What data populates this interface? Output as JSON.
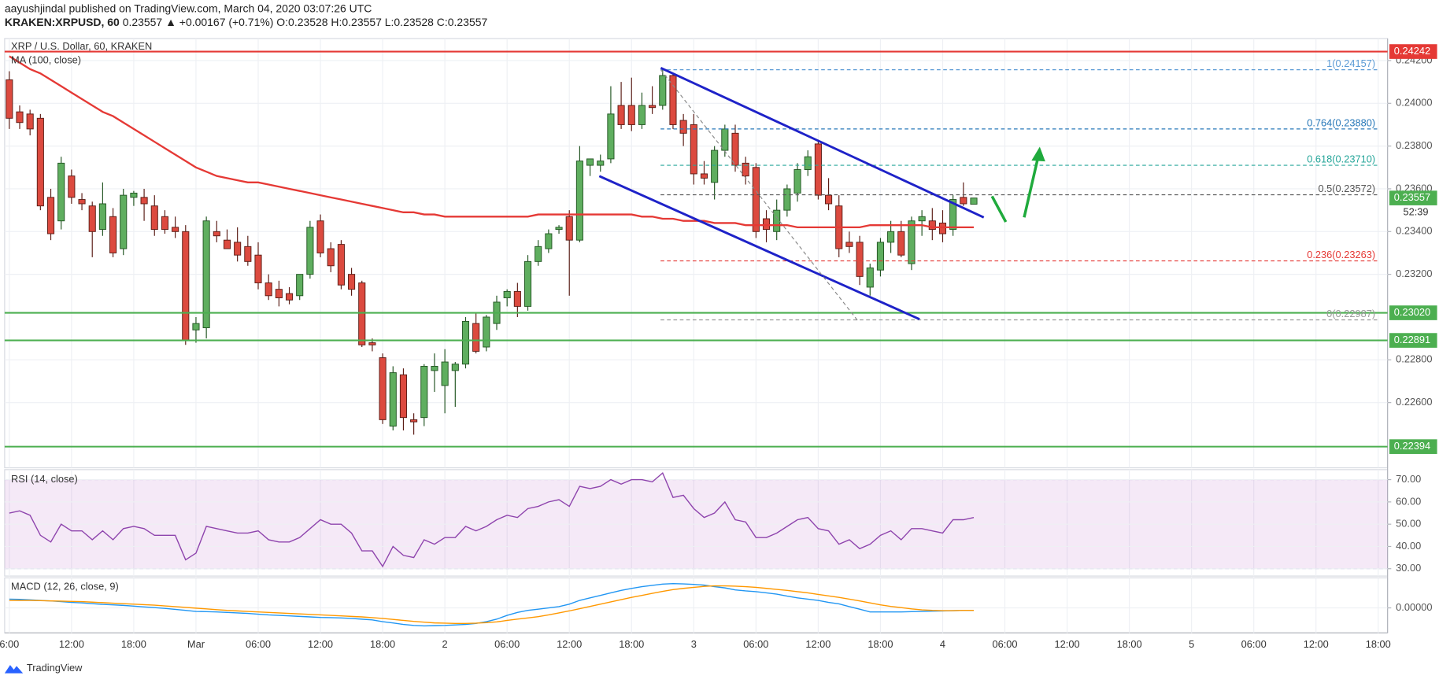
{
  "header": {
    "published": "aayushjindal published on TradingView.com, March 04, 2020 03:07:26 UTC",
    "symbol": "KRAKEN:XRPUSD, 60",
    "last": "0.23557",
    "change": "▲ +0.00167 (+0.71%)",
    "ohlc": "O:0.23528 H:0.23557 L:0.23528 C:0.23557",
    "countdown": "52:39",
    "brand": "TradingView"
  },
  "chart_data": [
    {
      "type": "candlestick",
      "title": "XRP / U.S. Dollar, 60, KRAKEN",
      "up_color": "#5fae5f",
      "up_border": "#225522",
      "down_color": "#dc4a3f",
      "down_border": "#5a1c15",
      "open": [
        0.2411,
        0.2396,
        0.2395,
        0.2393,
        0.2356,
        0.2345,
        0.2366,
        0.2355,
        0.2352,
        0.2341,
        0.2347,
        0.2332,
        0.2356,
        0.2356,
        0.2352,
        0.2347,
        0.2342,
        0.234,
        0.2294,
        0.2295,
        0.234,
        0.2336,
        0.2335,
        0.2333,
        0.2329,
        0.2316,
        0.2313,
        0.2311,
        0.231,
        0.232,
        0.2345,
        0.2332,
        0.2334,
        0.232,
        0.2316,
        0.2288,
        0.2281,
        0.2249,
        0.2273,
        0.2252,
        0.2253,
        0.2275,
        0.2268,
        0.2275,
        0.2278,
        0.2297,
        0.2286,
        0.2297,
        0.2309,
        0.2312,
        0.2305,
        0.2326,
        0.2332,
        0.2341,
        0.2347,
        0.2336,
        0.2371,
        0.2371,
        0.2374,
        0.2399,
        0.2399,
        0.239,
        0.2399,
        0.2399,
        0.2413,
        0.2392,
        0.239,
        0.2367,
        0.2363,
        0.2378,
        0.2386,
        0.2372,
        0.237,
        0.2346,
        0.234,
        0.235,
        0.2358,
        0.2369,
        0.2381,
        0.2357,
        0.2352,
        0.2335,
        0.2335,
        0.2314,
        0.2322,
        0.2335,
        0.234,
        0.2325,
        0.2345,
        0.2345,
        0.2344,
        0.2341,
        0.2356,
        0.23528
      ],
      "high": [
        0.2415,
        0.2399,
        0.2397,
        0.2395,
        0.236,
        0.2375,
        0.2369,
        0.2358,
        0.2354,
        0.2363,
        0.2351,
        0.236,
        0.2359,
        0.236,
        0.2357,
        0.235,
        0.2347,
        0.2343,
        0.23,
        0.2347,
        0.2345,
        0.2341,
        0.2342,
        0.2338,
        0.2335,
        0.232,
        0.2317,
        0.2314,
        0.232,
        0.2345,
        0.2348,
        0.2335,
        0.2336,
        0.2323,
        0.2317,
        0.229,
        0.2283,
        0.2277,
        0.2276,
        0.2255,
        0.2278,
        0.2283,
        0.2285,
        0.2279,
        0.23,
        0.2302,
        0.2301,
        0.231,
        0.2313,
        0.2316,
        0.2329,
        0.2336,
        0.2341,
        0.2343,
        0.235,
        0.238,
        0.2374,
        0.2376,
        0.2408,
        0.241,
        0.2412,
        0.2405,
        0.2408,
        0.2416,
        0.2414,
        0.2395,
        0.2395,
        0.2373,
        0.238,
        0.239,
        0.239,
        0.2375,
        0.2372,
        0.235,
        0.2355,
        0.2362,
        0.2372,
        0.2378,
        0.2383,
        0.2365,
        0.2357,
        0.234,
        0.2338,
        0.2325,
        0.2337,
        0.2345,
        0.2345,
        0.2347,
        0.235,
        0.2351,
        0.235,
        0.2357,
        0.2363,
        0.23557
      ],
      "low": [
        0.2388,
        0.2388,
        0.2385,
        0.235,
        0.2336,
        0.2341,
        0.2353,
        0.235,
        0.2328,
        0.2338,
        0.2328,
        0.2329,
        0.2352,
        0.2345,
        0.2338,
        0.2339,
        0.2337,
        0.2287,
        0.2288,
        0.229,
        0.2335,
        0.2332,
        0.2326,
        0.2324,
        0.2313,
        0.2308,
        0.2305,
        0.2306,
        0.2308,
        0.2318,
        0.2328,
        0.2321,
        0.2313,
        0.231,
        0.2286,
        0.2284,
        0.225,
        0.2247,
        0.2247,
        0.2245,
        0.2249,
        0.2265,
        0.2255,
        0.2258,
        0.2276,
        0.2283,
        0.2284,
        0.2294,
        0.2305,
        0.23,
        0.2303,
        0.2324,
        0.233,
        0.2339,
        0.231,
        0.2335,
        0.2366,
        0.2368,
        0.2372,
        0.2388,
        0.2387,
        0.2388,
        0.2395,
        0.2397,
        0.2388,
        0.238,
        0.2362,
        0.2362,
        0.2355,
        0.2375,
        0.2368,
        0.2362,
        0.2337,
        0.2335,
        0.2336,
        0.2347,
        0.2354,
        0.2366,
        0.2355,
        0.235,
        0.2328,
        0.233,
        0.2315,
        0.231,
        0.2319,
        0.233,
        0.2328,
        0.2322,
        0.2338,
        0.2336,
        0.2335,
        0.2338,
        0.2352,
        0.23528
      ],
      "close": [
        0.2393,
        0.2391,
        0.2388,
        0.2352,
        0.2339,
        0.2372,
        0.2356,
        0.2353,
        0.234,
        0.2353,
        0.233,
        0.2357,
        0.2358,
        0.2353,
        0.2341,
        0.2341,
        0.234,
        0.2289,
        0.2297,
        0.2345,
        0.2338,
        0.2332,
        0.2329,
        0.2326,
        0.2316,
        0.231,
        0.2309,
        0.2308,
        0.232,
        0.2342,
        0.233,
        0.2324,
        0.2315,
        0.2313,
        0.2287,
        0.2287,
        0.2252,
        0.2274,
        0.2253,
        0.2251,
        0.2277,
        0.2277,
        0.2279,
        0.2278,
        0.2298,
        0.2284,
        0.23,
        0.2307,
        0.2312,
        0.2305,
        0.2326,
        0.2333,
        0.2339,
        0.2342,
        0.2336,
        0.2373,
        0.2374,
        0.2373,
        0.2395,
        0.239,
        0.239,
        0.2399,
        0.2398,
        0.2413,
        0.239,
        0.2386,
        0.2367,
        0.2365,
        0.2378,
        0.2388,
        0.2371,
        0.2366,
        0.234,
        0.2341,
        0.235,
        0.236,
        0.2369,
        0.2375,
        0.2357,
        0.2353,
        0.2332,
        0.2333,
        0.2319,
        0.2323,
        0.2335,
        0.234,
        0.2329,
        0.2345,
        0.2347,
        0.2341,
        0.2339,
        0.2355,
        0.2353,
        0.23557
      ],
      "series": [
        {
          "name": "MA (100, close)",
          "color": "#e53935",
          "values": [
            0.2422,
            0.2419,
            0.2416,
            0.2414,
            0.2411,
            0.2408,
            0.2405,
            0.2402,
            0.2399,
            0.2396,
            0.2394,
            0.2391,
            0.2388,
            0.2385,
            0.2382,
            0.2379,
            0.2376,
            0.2373,
            0.237,
            0.2368,
            0.2366,
            0.2365,
            0.2364,
            0.2363,
            0.2363,
            0.2362,
            0.2361,
            0.236,
            0.2359,
            0.2358,
            0.2357,
            0.2356,
            0.2355,
            0.2354,
            0.2353,
            0.2352,
            0.2351,
            0.235,
            0.2349,
            0.2349,
            0.2348,
            0.2348,
            0.2347,
            0.2347,
            0.2347,
            0.2347,
            0.2347,
            0.2347,
            0.2347,
            0.2347,
            0.2347,
            0.2348,
            0.2348,
            0.2348,
            0.2348,
            0.2348,
            0.2348,
            0.2348,
            0.2348,
            0.2348,
            0.2348,
            0.2347,
            0.2347,
            0.2346,
            0.2346,
            0.2345,
            0.2345,
            0.2345,
            0.2344,
            0.2344,
            0.2344,
            0.2343,
            0.2343,
            0.2343,
            0.2343,
            0.2343,
            0.2342,
            0.2342,
            0.2342,
            0.2342,
            0.2342,
            0.2342,
            0.2342,
            0.2343,
            0.2343,
            0.2343,
            0.2343,
            0.2343,
            0.2343,
            0.2342,
            0.2342,
            0.2342,
            0.2342,
            0.2342
          ]
        }
      ],
      "xlim": [
        -0.45,
        132.9
      ],
      "xticks": [
        {
          "value": 0,
          "label": "6:00"
        },
        {
          "value": 6,
          "label": "12:00"
        },
        {
          "value": 12,
          "label": "18:00"
        },
        {
          "value": 18,
          "label": "Mar"
        },
        {
          "value": 24,
          "label": "06:00"
        },
        {
          "value": 30,
          "label": "12:00"
        },
        {
          "value": 36,
          "label": "18:00"
        },
        {
          "value": 42,
          "label": "2"
        },
        {
          "value": 48,
          "label": "06:00"
        },
        {
          "value": 54,
          "label": "12:00"
        },
        {
          "value": 60,
          "label": "18:00"
        },
        {
          "value": 66,
          "label": "3"
        },
        {
          "value": 72,
          "label": "06:00"
        },
        {
          "value": 78,
          "label": "12:00"
        },
        {
          "value": 84,
          "label": "18:00"
        },
        {
          "value": 90,
          "label": "4"
        },
        {
          "value": 96,
          "label": "06:00"
        },
        {
          "value": 102,
          "label": "12:00"
        },
        {
          "value": 108,
          "label": "18:00"
        },
        {
          "value": 114,
          "label": "5"
        },
        {
          "value": 120,
          "label": "06:00"
        },
        {
          "value": 126,
          "label": "12:00"
        },
        {
          "value": 132,
          "label": "18:00"
        }
      ],
      "ylim": [
        0.22295,
        0.24303
      ],
      "yticks": [
        {
          "value": 0.242,
          "label": "0.24200"
        },
        {
          "value": 0.24,
          "label": "0.24000"
        },
        {
          "value": 0.238,
          "label": "0.23800"
        },
        {
          "value": 0.236,
          "label": "0.23600"
        },
        {
          "value": 0.234,
          "label": "0.23400"
        },
        {
          "value": 0.232,
          "label": "0.23200"
        },
        {
          "value": 0.228,
          "label": "0.22800"
        },
        {
          "value": 0.226,
          "label": "0.22600"
        }
      ],
      "grid": true,
      "levels": [
        {
          "value": 0.24242,
          "label": "0.24242",
          "color": "#e53935"
        },
        {
          "value": 0.2302,
          "label": "0.23020",
          "color": "#4caf50"
        },
        {
          "value": 0.22891,
          "label": "0.22891",
          "color": "#4caf50"
        },
        {
          "value": 0.22394,
          "label": "0.22394",
          "color": "#4caf50"
        }
      ],
      "last_color": "#4caf50",
      "fib": [
        {
          "label": "1(0.24157)",
          "value": 0.24157,
          "color": "#5b9bd5"
        },
        {
          "label": "0.764(0.23880)",
          "value": 0.2388,
          "color": "#2979b9"
        },
        {
          "label": "0.618(0.23710)",
          "value": 0.2371,
          "color": "#26a69a"
        },
        {
          "label": "0.5(0.23572)",
          "value": 0.23572,
          "color": "#555555"
        },
        {
          "label": "0.236(0.23263)",
          "value": 0.23263,
          "color": "#e53935"
        },
        {
          "label": "0(0.22987)",
          "value": 0.22987,
          "color": "#999999"
        }
      ]
    },
    {
      "type": "line",
      "ylim": [
        26.7,
        74.5
      ],
      "yticks": [
        {
          "value": 70,
          "label": "70.00"
        },
        {
          "value": 60,
          "label": "60.00"
        },
        {
          "value": 50,
          "label": "50.00"
        },
        {
          "value": 40,
          "label": "40.00"
        },
        {
          "value": 30,
          "label": "30.00"
        }
      ],
      "band": [
        30,
        70
      ],
      "band_color": "#9c27b0",
      "series": [
        {
          "name": "RSI (14, close)",
          "color": "#8e44ad",
          "values": [
            55,
            56,
            54,
            45,
            42,
            50,
            47,
            47,
            43,
            47,
            43,
            48,
            49,
            48,
            45,
            45,
            45,
            34,
            37,
            49,
            48,
            47,
            46,
            46,
            47,
            43,
            42,
            42,
            44,
            48,
            52,
            50,
            50,
            46,
            38,
            38,
            31,
            40,
            36,
            35,
            43,
            41,
            44,
            44,
            49,
            47,
            49,
            52,
            54,
            53,
            57,
            58,
            60,
            61,
            58,
            67,
            66,
            67,
            70,
            68,
            70,
            70,
            69,
            73,
            62,
            63,
            57,
            53,
            55,
            60,
            52,
            51,
            44,
            44,
            46,
            49,
            52,
            53,
            48,
            47,
            41,
            43,
            39,
            41,
            45,
            47,
            43,
            48,
            48,
            47,
            46,
            52,
            52,
            53
          ]
        }
      ]
    },
    {
      "type": "line",
      "title": "MACD (12, 26, close, 9)",
      "ylim": [
        -0.001,
        0.0012
      ],
      "yticks": [
        {
          "value": 0,
          "label": "0.00000"
        }
      ],
      "series": [
        {
          "color": "#2196f3",
          "values": [
            0.00035,
            0.00034,
            0.00032,
            0.0003,
            0.00028,
            0.00025,
            0.00022,
            0.0002,
            0.00017,
            0.00014,
            0.00012,
            0.0001,
            7e-05,
            4e-05,
            1e-05,
            -2e-05,
            -6e-05,
            -0.0001,
            -0.00014,
            -0.00015,
            -0.00016,
            -0.00018,
            -0.0002,
            -0.00022,
            -0.00025,
            -0.00028,
            -0.0003,
            -0.00032,
            -0.00034,
            -0.00036,
            -0.00038,
            -0.00039,
            -0.0004,
            -0.00042,
            -0.00045,
            -0.00048,
            -0.00055,
            -0.0006,
            -0.00066,
            -0.0007,
            -0.00072,
            -0.00071,
            -0.0007,
            -0.00068,
            -0.00066,
            -0.00062,
            -0.00055,
            -0.00045,
            -0.0003,
            -0.00018,
            -0.0001,
            -5e-05,
            0,
            5e-05,
            0.00015,
            0.0003,
            0.0004,
            0.0005,
            0.0006,
            0.0007,
            0.00078,
            0.00085,
            0.0009,
            0.00095,
            0.00097,
            0.00096,
            0.00094,
            0.00091,
            0.00085,
            0.0008,
            0.00072,
            0.00068,
            0.00065,
            0.0006,
            0.00055,
            0.00047,
            0.0004,
            0.00035,
            0.0003,
            0.00022,
            0.00016,
            5e-05,
            -5e-05,
            -0.00016,
            -0.00016,
            -0.00016,
            -0.00016,
            -0.00015,
            -0.00014,
            -0.00013,
            -0.00012,
            -0.00011,
            -0.0001,
            -0.0001
          ]
        },
        {
          "color": "#ff9800",
          "values": [
            0.0003,
            0.0003,
            0.0003,
            0.00029,
            0.00028,
            0.00027,
            0.00026,
            0.00025,
            0.00023,
            0.00021,
            0.00019,
            0.00017,
            0.00015,
            0.00013,
            0.00011,
            8e-05,
            5e-05,
            2e-05,
            -1e-05,
            -4e-05,
            -7e-05,
            -0.0001,
            -0.00012,
            -0.00014,
            -0.00016,
            -0.00018,
            -0.0002,
            -0.00022,
            -0.00024,
            -0.00026,
            -0.00028,
            -0.0003,
            -0.00032,
            -0.00034,
            -0.00036,
            -0.00039,
            -0.00042,
            -0.00046,
            -0.0005,
            -0.00054,
            -0.00057,
            -0.0006,
            -0.00061,
            -0.00062,
            -0.00062,
            -0.00061,
            -0.00059,
            -0.00056,
            -0.0005,
            -0.00045,
            -0.0004,
            -0.00035,
            -0.00028,
            -0.0002,
            -0.00012,
            -3e-05,
            6e-05,
            0.00015,
            0.00024,
            0.00033,
            0.00042,
            0.0005,
            0.00058,
            0.00066,
            0.00073,
            0.00078,
            0.00082,
            0.00086,
            0.00088,
            0.00088,
            0.00087,
            0.00085,
            0.00082,
            0.00078,
            0.00074,
            0.0007,
            0.00065,
            0.0006,
            0.00054,
            0.00048,
            0.00042,
            0.00035,
            0.00028,
            0.0002,
            0.00012,
            6e-05,
            1e-05,
            -4e-05,
            -8e-05,
            -0.0001,
            -0.00011,
            -0.00011,
            -0.0001,
            -0.0001
          ]
        }
      ]
    }
  ]
}
